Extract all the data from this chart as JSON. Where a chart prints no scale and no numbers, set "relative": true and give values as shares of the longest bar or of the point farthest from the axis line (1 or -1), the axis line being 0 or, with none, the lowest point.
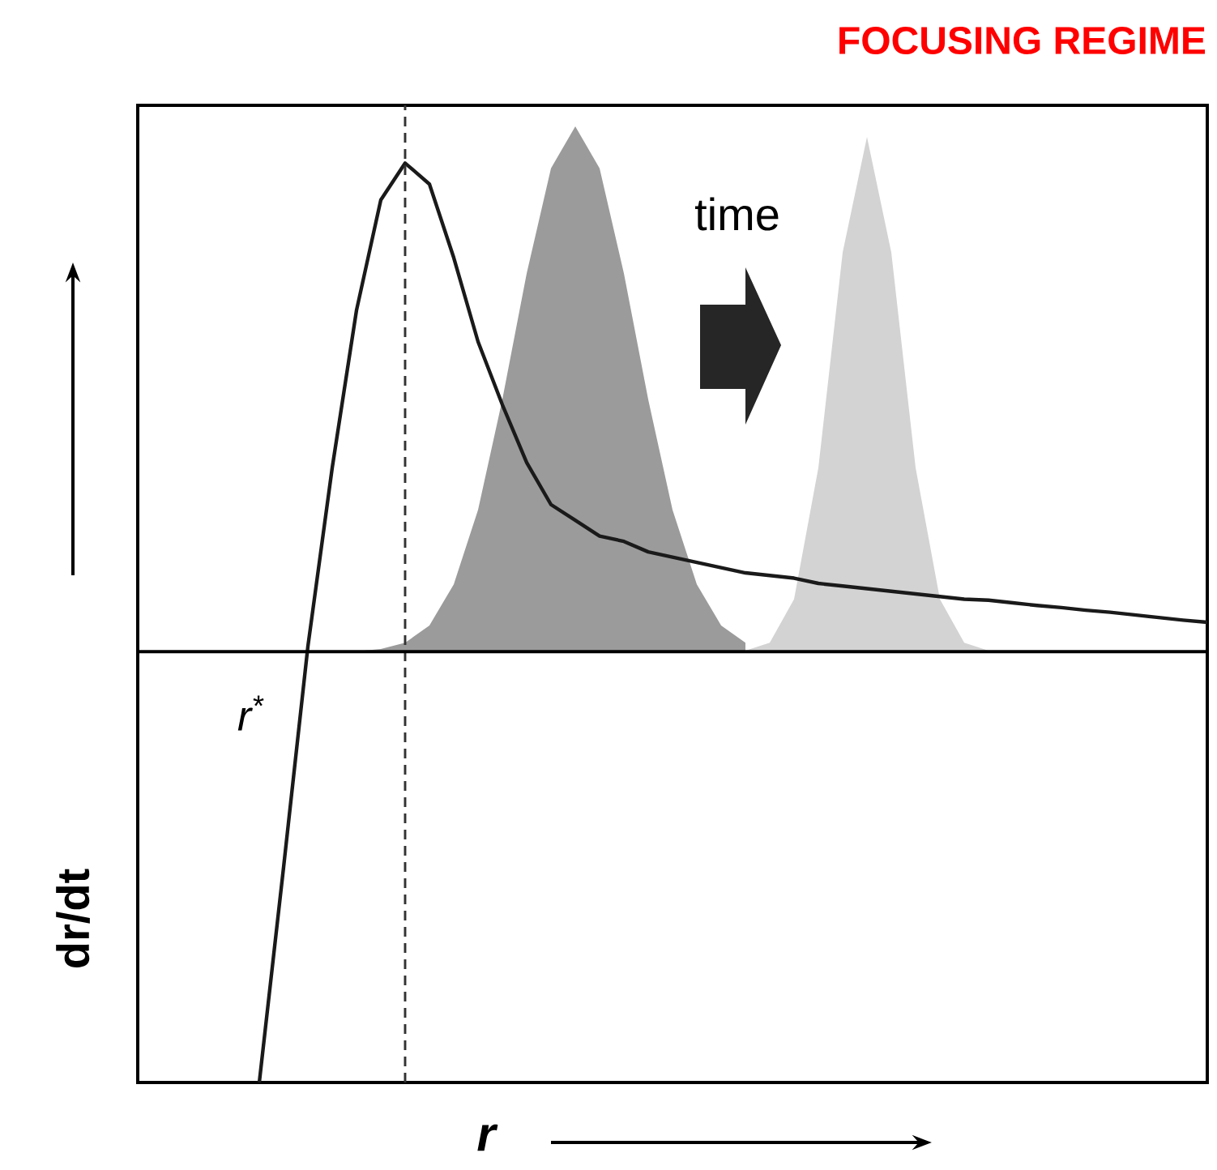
{
  "chart_data": {
    "type": "line",
    "title": "FOCUSING REGIME",
    "xlabel": "r",
    "ylabel": "dr/dt",
    "relative": true,
    "categories": [
      null,
      null,
      null,
      null,
      null,
      null,
      null,
      null,
      null,
      null,
      null,
      null,
      null,
      null,
      null,
      null,
      null,
      null,
      null,
      null,
      null,
      null,
      null,
      null,
      null,
      null,
      null,
      null,
      null,
      null,
      null,
      null,
      null,
      null,
      null,
      null,
      null,
      null,
      null,
      null,
      null,
      null,
      null,
      null,
      null
    ],
    "series": [
      {
        "type": "area",
        "color": "#9b9b9b",
        "values": [
          null,
          null,
          null,
          null,
          null,
          null,
          null,
          null,
          0,
          0.001,
          0.005,
          0.017,
          0.05,
          0.128,
          0.27,
          0.48,
          0.72,
          0.92,
          1.0,
          0.92,
          0.72,
          0.48,
          0.27,
          0.128,
          0.05,
          0.017,
          null,
          null,
          null,
          null,
          null,
          null,
          null,
          null,
          null,
          null,
          null,
          null,
          null,
          null,
          null,
          null,
          null,
          null,
          null
        ]
      },
      {
        "type": "area",
        "color": "#d3d3d3",
        "values": [
          null,
          null,
          null,
          null,
          null,
          null,
          null,
          null,
          null,
          null,
          null,
          null,
          null,
          null,
          null,
          null,
          null,
          null,
          null,
          null,
          null,
          null,
          null,
          null,
          0,
          0.002,
          0.017,
          0.1,
          0.35,
          0.76,
          0.98,
          0.76,
          0.35,
          0.1,
          0.017,
          0.002,
          0,
          null,
          null,
          null,
          null,
          null,
          null,
          null,
          null
        ]
      },
      {
        "color": "#1a1a1a",
        "values": [
          null,
          null,
          null,
          null,
          null,
          -0.82,
          -0.41,
          0.01,
          0.35,
          0.65,
          0.86,
          0.93,
          0.89,
          0.75,
          0.59,
          0.47,
          0.36,
          0.28,
          0.25,
          0.22,
          0.21,
          0.19,
          0.18,
          0.17,
          0.16,
          0.15,
          0.145,
          0.14,
          0.13,
          0.125,
          0.12,
          0.115,
          0.11,
          0.105,
          0.1,
          0.098,
          0.093,
          0.088,
          0.084,
          0.079,
          0.075,
          0.07,
          0.065,
          0.06,
          0.056
        ]
      }
    ],
    "annotations": [
      "time",
      "*r*$^{*}$"
    ]
  }
}
